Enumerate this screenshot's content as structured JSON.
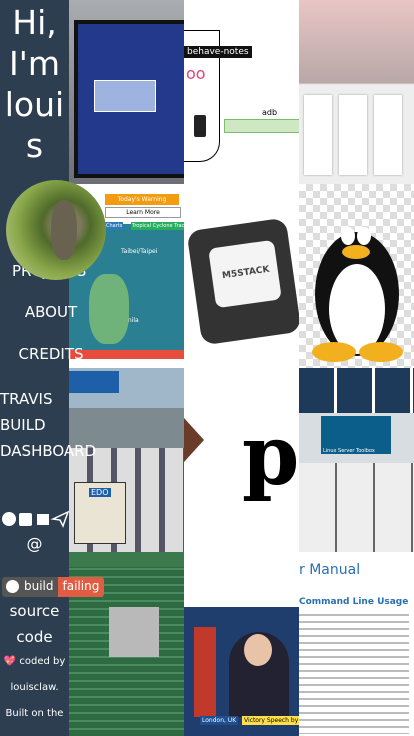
{
  "sidebar": {
    "title": "Hi, I'm louis",
    "nav": [
      "PROJECTS",
      "ABOUT",
      "CREDITS",
      "TRAVIS BUILD DASHBOARD"
    ],
    "contact": "@",
    "badge": {
      "label": "build",
      "status": "failing"
    },
    "source": "source code",
    "credit": [
      "💖 coded by",
      "louisclaw.",
      "Built on the"
    ]
  },
  "tiles": {
    "diagram": [
      "behave-notes",
      "adb"
    ],
    "weather": [
      "Today's Warning",
      "Learn More",
      "Charts",
      "Tropical Cyclone Track",
      "Taibei/Taipei",
      "Manila"
    ],
    "device": "M5STACK",
    "traffic": "EDO",
    "letter": "p",
    "toolbox": "Linux Server Toolbox",
    "news": [
      "London, UK",
      "Victory Speech by"
    ],
    "manual": [
      "r Manual",
      "Command Line Usage"
    ]
  }
}
